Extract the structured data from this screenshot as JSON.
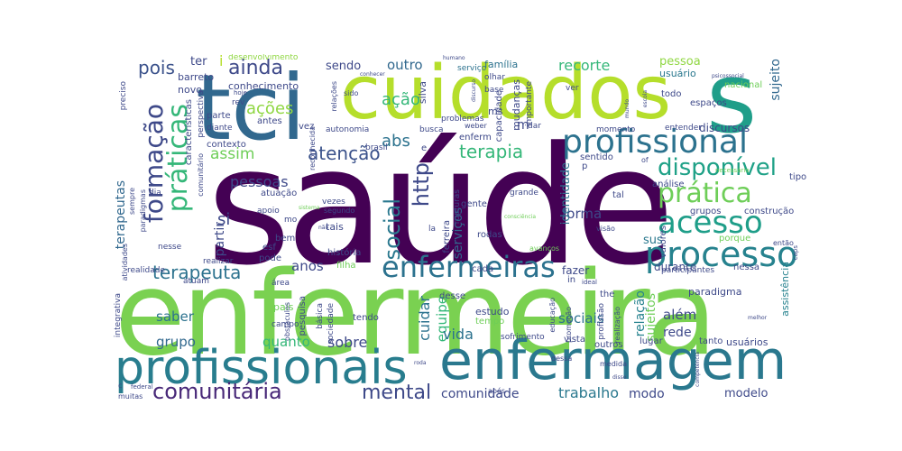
{
  "words": {
    "saude": "saúde",
    "enfermeira": "enfermeira",
    "cuidados": "cuidados",
    "tci": "tci",
    "s": "s",
    "enfermagem": "enfermagem",
    "profissionais": "profissionais",
    "profissional": "profissional",
    "processo": "processo",
    "acesso": "acesso",
    "pratica": "prática",
    "disponivel": "disponível",
    "enfermeiras": "enfermeiras",
    "formacao": "formação",
    "praticas": "práticas",
    "ainda": "ainda",
    "pois": "pois",
    "comunitaria": "comunitária",
    "mental": "mental",
    "social": "social",
    "http": "http",
    "terapeuta": "terapeuta",
    "terapeutas": "terapeutas",
    "terapia": "terapia",
    "atencao": "atenção",
    "abs": "abs",
    "acoes": "ações",
    "acao": "ação",
    "assim": "assim",
    "pessoas": "pessoas",
    "si": "si",
    "partir": "partir",
    "outro": "outro",
    "sendo": "sendo",
    "recorte": "recorte",
    "pessoa": "pessoa",
    "sujeito": "sujeito",
    "sujeitos": "sujeitos",
    "forma": "forma",
    "servicos": "serviços",
    "equipe": "equipe",
    "cuidar": "cuidar",
    "sobre": "sobre",
    "saber": "saber",
    "quanto": "quanto",
    "grupo": "grupo",
    "grupos": "grupos",
    "anos": "anos",
    "vida": "vida",
    "comunidade": "comunidade",
    "trabalho": "trabalho",
    "modo": "modo",
    "modelo": "modelo",
    "sociais": "sociais",
    "alem": "além",
    "rede": "rede",
    "relacao": "relação",
    "identidade": "identidade",
    "fazer": "fazer",
    "sus": "sus",
    "durante": "durante",
    "paradigma": "paradigma",
    "assistencia": "assistência",
    "ter": "ter",
    "barreto": "barreto",
    "novo": "novo",
    "conhecimento": "conhecimento",
    "desenvolvimento": "desenvolvimento",
    "familia": "família",
    "servico": "serviço",
    "usuario": "usuário",
    "usuarios": "usuários",
    "nacional": "nacional",
    "espacos": "espaços",
    "todo": "todo",
    "discursos": "discursos",
    "entender": "entender",
    "mudancas": "mudanças",
    "capacidade": "capacidade",
    "importante": "importante",
    "silva": "silva",
    "ms": "ms",
    "dar": "dar",
    "m": "m",
    "enferm": "enferm",
    "busca": "busca",
    "momento": "momento",
    "sentido": "sentido",
    "analise": "análise",
    "tal": "tal",
    "tipo": "tipo",
    "construcao": "construção",
    "valores": "valores",
    "porque": "porque",
    "entao": "então",
    "participantes": "participantes",
    "nessa": "nessa",
    "tanto": "tanto",
    "estudo": "estudo",
    "tempo": "tempo",
    "in": "in",
    "the": "the",
    "lugar": "lugar",
    "outros": "outros",
    "vista": "vista",
    "sofrimento": "sofrimento",
    "desse": "desse",
    "tendo": "tendo",
    "basica": "básica",
    "sociedade": "sociedade",
    "pesquisa": "pesquisa",
    "pais": "país",
    "campo": "campo",
    "area": "área",
    "pode": "pode",
    "atuam": "atuam",
    "esf": "esf",
    "historia": "história",
    "filha": "filha",
    "bem": "bem",
    "cada": "cada",
    "nesse": "nesse",
    "realizar": "realizar",
    "realidade": "realidade",
    "integrativa": "integrativa",
    "atividades": "atividades",
    "muitas": "muitas",
    "c": "c",
    "contexto": "contexto",
    "antes": "antes",
    "parte": "parte",
    "rev": "rev",
    "vez": "vez",
    "diante": "diante",
    "atuacao": "atuação",
    "apoio": "apoio",
    "segundo": "segundo",
    "vezes": "vezes",
    "brasil": "brasil",
    "tais": "tais",
    "mo": "mo",
    "gente": "gente",
    "ferreira": "ferreira",
    "rupturas": "rupturas",
    "rodas": "rodas",
    "la": "la",
    "avancos": "avanços",
    "visao": "visão",
    "educacao": "educação",
    "promocao": "promoção",
    "profissao": "profissão",
    "realizacao": "realização",
    "ideal": "ideal",
    "medida": "medida",
    "apos": "após",
    "federal": "federal",
    "obstaculos": "obstáculos",
    "preciso": "preciso",
    "caracteristicas": "características",
    "perspectiva": "perspectiva",
    "reconhecida": "reconhecida",
    "comunitario": "comunitário",
    "sempre": "sempre",
    "paradigmas": "paradigmas",
    "dia": "dia",
    "olhar": "olhar",
    "base": "base",
    "ver": "ver",
    "weber": "weber",
    "problemas": "problemas",
    "autonomia": "autonomia",
    "relacoes": "relações",
    "sido": "sido",
    "hoje": "hoje",
    "humano": "humano",
    "conhecer": "conhecer",
    "psicossocial": "psicossocial",
    "necessario": "necessário",
    "grande": "grande",
    "conscienca": "consciência",
    "sistema": "sistema",
    "nao": "não",
    "melhor": "melhor",
    "caps": "caps",
    "of": "of",
    "p": "p",
    "mundo": "mundo",
    "escola": "escola",
    "discurso": "discurso",
    "roda": "roda",
    "disso": "disso",
    "competencia": "competência",
    "dessa": "dessa",
    "i": "i",
    "e": "e"
  },
  "colors": {
    "dark_purple": "#440154",
    "indigo": "#482878",
    "blue_purple": "#3e4989",
    "slate_blue": "#31688e",
    "teal_blue": "#26828e",
    "teal": "#1f9e89",
    "green_teal": "#35b779",
    "green": "#6ece58",
    "lime": "#90d743",
    "yellow_green": "#b5de2b",
    "yellow": "#fde725"
  }
}
